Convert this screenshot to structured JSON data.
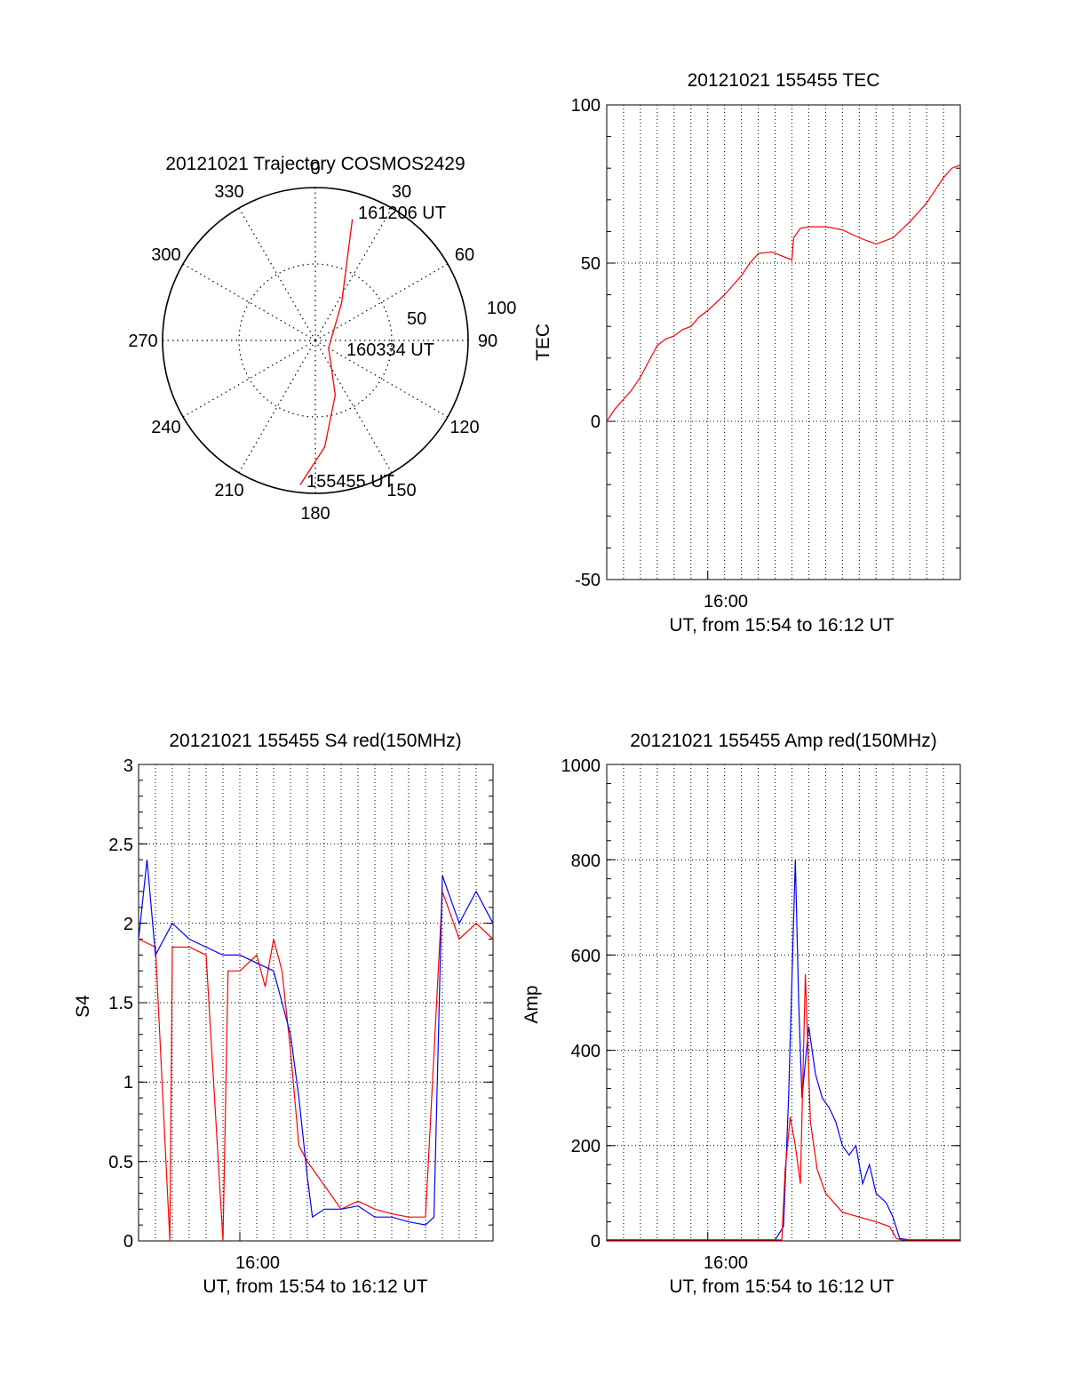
{
  "chart_data": [
    {
      "type": "polar",
      "title": "20121021 Trajectory COSMOS2429",
      "azimuth_labels": [
        "0",
        "30",
        "60",
        "90",
        "120",
        "150",
        "180",
        "210",
        "240",
        "270",
        "300",
        "330"
      ],
      "radial_labels": [
        "50",
        "100"
      ],
      "rlim": [
        0,
        100
      ],
      "grid": true,
      "series": [
        {
          "color": "#ff0000",
          "points": [
            {
              "az": 186,
              "zenith": 95
            },
            {
              "az": 175,
              "zenith": 70
            },
            {
              "az": 160,
              "zenith": 38
            },
            {
              "az": 120,
              "zenith": 10
            },
            {
              "az": 35,
              "zenith": 30
            },
            {
              "az": 22,
              "zenith": 55
            },
            {
              "az": 18,
              "zenith": 75
            },
            {
              "az": 17,
              "zenith": 83
            }
          ]
        }
      ],
      "annotations": [
        "161206 UT",
        "160334 UT",
        "155455 UT"
      ]
    },
    {
      "type": "line",
      "title": "20121021 155455 TEC",
      "xlabel": "UT, from 15:54 to 16:12 UT",
      "ylabel": "TEC",
      "xlim": [
        0,
        21
      ],
      "ylim": [
        -50,
        100
      ],
      "x_ticks": [
        {
          "v": 6,
          "label": "16:00"
        }
      ],
      "y_ticks": [
        "-50",
        "0",
        "50",
        "100"
      ],
      "grid": true,
      "series": [
        {
          "color": "#ff0000",
          "points": [
            [
              0,
              0
            ],
            [
              0.5,
              4
            ],
            [
              1,
              7
            ],
            [
              1.5,
              10
            ],
            [
              2,
              14
            ],
            [
              2.5,
              19
            ],
            [
              3,
              24
            ],
            [
              3.5,
              26
            ],
            [
              4,
              27
            ],
            [
              4.5,
              29
            ],
            [
              5,
              30
            ],
            [
              5.5,
              33
            ],
            [
              6,
              35
            ],
            [
              6.5,
              37.5
            ],
            [
              7,
              40
            ],
            [
              7.5,
              43
            ],
            [
              8,
              46
            ],
            [
              8.5,
              50
            ],
            [
              9,
              53
            ],
            [
              9.8,
              53.5
            ],
            [
              11,
              51
            ],
            [
              11.1,
              58
            ],
            [
              11.5,
              61
            ],
            [
              12,
              61.5
            ],
            [
              13,
              61.5
            ],
            [
              14,
              60.5
            ],
            [
              15,
              58
            ],
            [
              16,
              56
            ],
            [
              17,
              58
            ],
            [
              18,
              63
            ],
            [
              19,
              69
            ],
            [
              20,
              77
            ],
            [
              20.5,
              80
            ],
            [
              21,
              81
            ]
          ]
        }
      ]
    },
    {
      "type": "line",
      "title": "20121021 155455 S4 red(150MHz)",
      "xlabel": "UT, from 15:54 to 16:12 UT",
      "ylabel": "S4",
      "xlim": [
        0,
        21
      ],
      "ylim": [
        0,
        3
      ],
      "x_ticks": [
        {
          "v": 6,
          "label": "16:00"
        }
      ],
      "y_ticks": [
        "0",
        "0.5",
        "1",
        "1.5",
        "2",
        "2.5",
        "3"
      ],
      "grid": true,
      "series": [
        {
          "color": "#ff0000",
          "points": [
            [
              0,
              1.9
            ],
            [
              1,
              1.85
            ],
            [
              1.85,
              0
            ],
            [
              2,
              1.85
            ],
            [
              3,
              1.85
            ],
            [
              4,
              1.8
            ],
            [
              5,
              0
            ],
            [
              5.3,
              1.7
            ],
            [
              6,
              1.7
            ],
            [
              7,
              1.8
            ],
            [
              7.5,
              1.6
            ],
            [
              8,
              1.9
            ],
            [
              8.5,
              1.7
            ],
            [
              9,
              1.2
            ],
            [
              9.5,
              0.6
            ],
            [
              10,
              0.5
            ],
            [
              11,
              0.35
            ],
            [
              12,
              0.2
            ],
            [
              13,
              0.25
            ],
            [
              14,
              0.2
            ],
            [
              15,
              0.17
            ],
            [
              16,
              0.15
            ],
            [
              17,
              0.15
            ],
            [
              18,
              2.2
            ],
            [
              19,
              1.9
            ],
            [
              20,
              2.0
            ],
            [
              21,
              1.9
            ]
          ]
        },
        {
          "color": "#0000ff",
          "points": [
            [
              0,
              1.9
            ],
            [
              0.5,
              2.4
            ],
            [
              1,
              1.8
            ],
            [
              2,
              2.0
            ],
            [
              3,
              1.9
            ],
            [
              4,
              1.85
            ],
            [
              5,
              1.8
            ],
            [
              6,
              1.8
            ],
            [
              7,
              1.75
            ],
            [
              8,
              1.7
            ],
            [
              8.5,
              1.5
            ],
            [
              9,
              1.3
            ],
            [
              9.5,
              0.9
            ],
            [
              10,
              0.4
            ],
            [
              10.3,
              0.15
            ],
            [
              11,
              0.2
            ],
            [
              12,
              0.2
            ],
            [
              13,
              0.22
            ],
            [
              14,
              0.15
            ],
            [
              15,
              0.15
            ],
            [
              16,
              0.12
            ],
            [
              17,
              0.1
            ],
            [
              17.5,
              0.15
            ],
            [
              18,
              2.3
            ],
            [
              19,
              2.0
            ],
            [
              20,
              2.2
            ],
            [
              21,
              2.0
            ]
          ]
        }
      ]
    },
    {
      "type": "line",
      "title": "20121021 155455 Amp red(150MHz)",
      "xlabel": "UT, from 15:54 to 16:12 UT",
      "ylabel": "Amp",
      "xlim": [
        0,
        21
      ],
      "ylim": [
        0,
        1000
      ],
      "x_ticks": [
        {
          "v": 6,
          "label": "16:00"
        }
      ],
      "y_ticks": [
        "0",
        "200",
        "400",
        "600",
        "800",
        "1000"
      ],
      "grid": true,
      "series": [
        {
          "color": "#0000ff",
          "points": [
            [
              0,
              2
            ],
            [
              10,
              2
            ],
            [
              10.5,
              30
            ],
            [
              10.8,
              300
            ],
            [
              11,
              550
            ],
            [
              11.2,
              800
            ],
            [
              11.4,
              500
            ],
            [
              11.6,
              300
            ],
            [
              12,
              450
            ],
            [
              12.4,
              350
            ],
            [
              12.8,
              300
            ],
            [
              13.2,
              280
            ],
            [
              13.6,
              250
            ],
            [
              14,
              200
            ],
            [
              14.4,
              180
            ],
            [
              14.8,
              200
            ],
            [
              15.2,
              120
            ],
            [
              15.6,
              160
            ],
            [
              16,
              100
            ],
            [
              16.6,
              80
            ],
            [
              17,
              50
            ],
            [
              17.4,
              5
            ],
            [
              18,
              2
            ],
            [
              21,
              2
            ]
          ]
        },
        {
          "color": "#ff0000",
          "points": [
            [
              0,
              2
            ],
            [
              10.4,
              2
            ],
            [
              10.6,
              150
            ],
            [
              10.9,
              260
            ],
            [
              11.2,
              200
            ],
            [
              11.5,
              120
            ],
            [
              11.8,
              560
            ],
            [
              12.1,
              250
            ],
            [
              12.5,
              150
            ],
            [
              13,
              100
            ],
            [
              13.5,
              80
            ],
            [
              14,
              60
            ],
            [
              15,
              50
            ],
            [
              16,
              40
            ],
            [
              16.8,
              30
            ],
            [
              17.2,
              5
            ],
            [
              17.5,
              2
            ],
            [
              21,
              2
            ]
          ]
        }
      ]
    }
  ]
}
